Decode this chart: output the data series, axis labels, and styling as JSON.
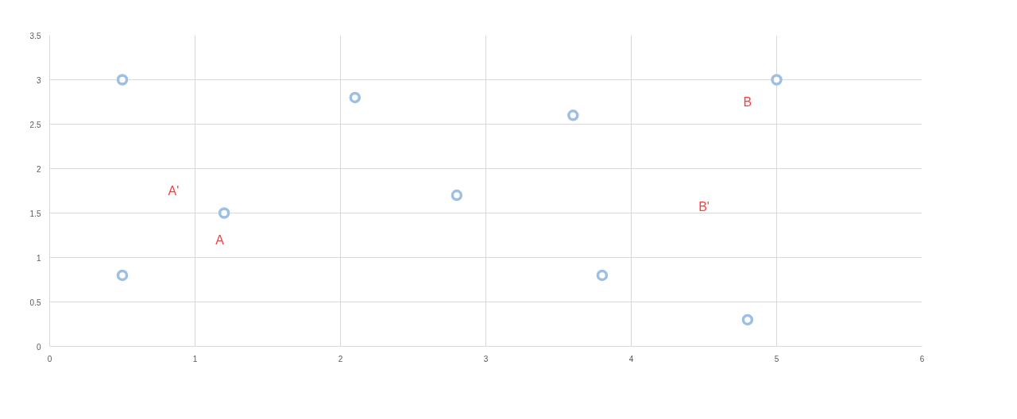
{
  "chart_data": {
    "type": "scatter",
    "x": [
      0.5,
      2.1,
      3.6,
      5.0,
      0.5,
      1.2,
      2.8,
      3.8,
      4.8
    ],
    "series": [
      {
        "color": "#9dbfe3",
        "values": [
          3.0,
          2.8,
          2.6,
          3.0,
          0.8,
          1.5,
          1.7,
          0.8,
          0.3
        ]
      }
    ],
    "xlim": [
      0,
      6
    ],
    "xticks": [
      0,
      1,
      2,
      3,
      4,
      5,
      6
    ],
    "ylim": [
      0,
      3.5
    ],
    "yticks": [
      0,
      0.5,
      1,
      1.5,
      2,
      2.5,
      3,
      3.5
    ],
    "grid": true,
    "marker": "circle",
    "annotations": [
      "A'",
      "A",
      "B",
      "B'"
    ]
  }
}
